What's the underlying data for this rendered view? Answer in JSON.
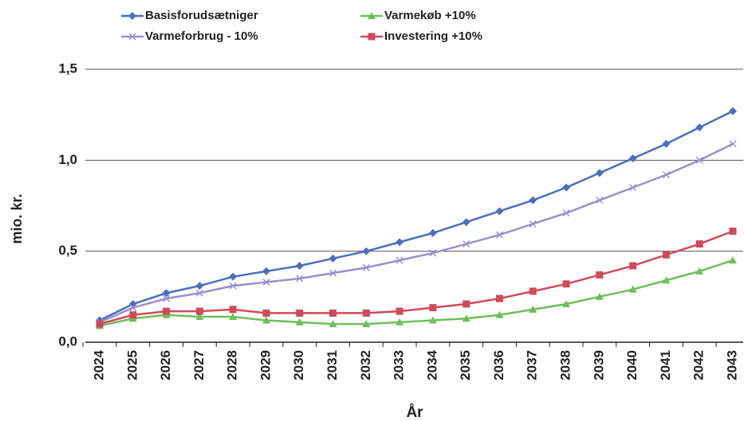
{
  "chart_data": {
    "type": "line",
    "xlabel": "År",
    "ylabel": "mio. kr.",
    "categories": [
      "2024",
      "2025",
      "2026",
      "2027",
      "2028",
      "2029",
      "2030",
      "2031",
      "2032",
      "2033",
      "2034",
      "2035",
      "2036",
      "2037",
      "2038",
      "2039",
      "2040",
      "2041",
      "2042",
      "2043"
    ],
    "series": [
      {
        "name": "Basisforudsætniger",
        "color": "#4a6fbf",
        "marker": "diamond",
        "values": [
          0.12,
          0.21,
          0.27,
          0.31,
          0.36,
          0.39,
          0.42,
          0.46,
          0.5,
          0.55,
          0.6,
          0.66,
          0.72,
          0.78,
          0.85,
          0.93,
          1.01,
          1.09,
          1.18,
          1.27
        ]
      },
      {
        "name": "Varmekøb +10%",
        "color": "#6dbf5a",
        "marker": "triangle",
        "values": [
          0.09,
          0.13,
          0.15,
          0.14,
          0.14,
          0.12,
          0.11,
          0.1,
          0.1,
          0.11,
          0.12,
          0.13,
          0.15,
          0.18,
          0.21,
          0.25,
          0.29,
          0.34,
          0.39,
          0.45
        ]
      },
      {
        "name": "Varmeforbrug - 10%",
        "color": "#9b8fd0",
        "marker": "x",
        "values": [
          0.11,
          0.19,
          0.24,
          0.27,
          0.31,
          0.33,
          0.35,
          0.38,
          0.41,
          0.45,
          0.49,
          0.54,
          0.59,
          0.65,
          0.71,
          0.78,
          0.85,
          0.92,
          1.0,
          1.09
        ]
      },
      {
        "name": "Investering +10%",
        "color": "#d04a5a",
        "marker": "square",
        "values": [
          0.1,
          0.15,
          0.17,
          0.17,
          0.18,
          0.16,
          0.16,
          0.16,
          0.16,
          0.17,
          0.19,
          0.21,
          0.24,
          0.28,
          0.32,
          0.37,
          0.42,
          0.48,
          0.54,
          0.61
        ]
      }
    ],
    "ylim": [
      0,
      1.5
    ],
    "yticks": [
      {
        "value": 0,
        "label": "0,0"
      },
      {
        "value": 0.5,
        "label": "0,5"
      },
      {
        "value": 1.0,
        "label": "1,0"
      },
      {
        "value": 1.5,
        "label": "1,5"
      }
    ],
    "grid": true,
    "legend": "top"
  }
}
